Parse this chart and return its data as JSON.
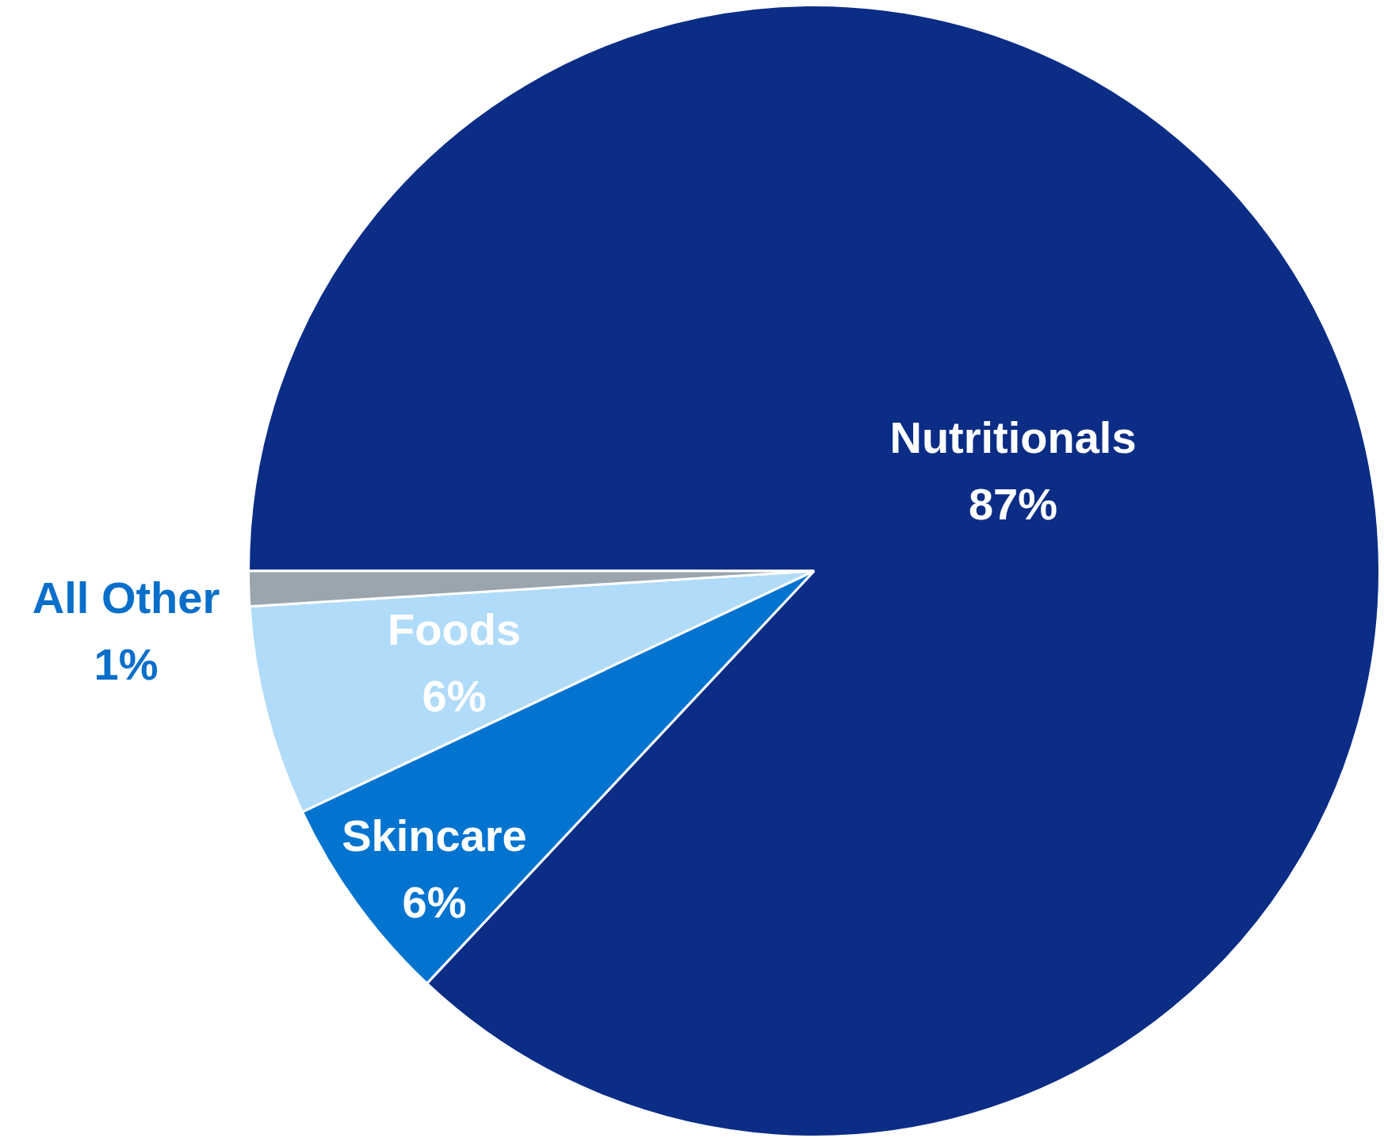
{
  "chart_data": {
    "type": "pie",
    "categories": [
      "Nutritionals",
      "Skincare",
      "Foods",
      "All Other"
    ],
    "values": [
      87,
      6,
      6,
      1
    ],
    "colors": [
      "#0b2d86",
      "#0274d0",
      "#b0dbf9",
      "#9aa5ae"
    ],
    "value_labels": [
      "87%",
      "6%",
      "6%",
      "1%"
    ],
    "legend": false
  }
}
